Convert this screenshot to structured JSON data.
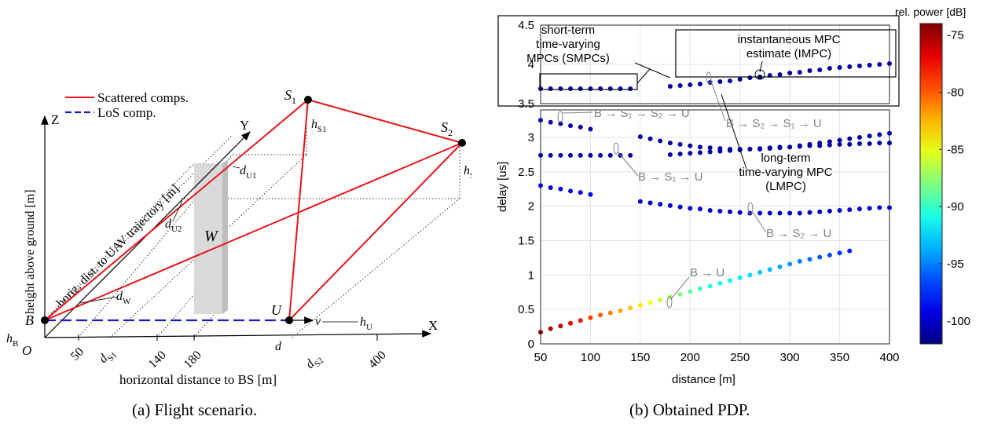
{
  "captions": {
    "a": "(a) Flight scenario.",
    "b": "(b) Obtained PDP."
  },
  "scenario": {
    "legend": {
      "scattered": "Scattered comps.",
      "los": "LoS comp."
    },
    "colors": {
      "scattered": "#e8151b",
      "los": "#1818c8"
    },
    "axis_z": "Z",
    "axis_y": "Y",
    "axis_x": "X",
    "zlabel": "height above ground [m]",
    "ylabel": "horiz. dist. to UAV trajectory [m]",
    "xlabel": "horizontal distance to BS [m]",
    "x_ticks": [
      "50",
      "140",
      "180",
      "400"
    ],
    "labels": {
      "origin": "O",
      "B": "B",
      "U": "U",
      "W": "W",
      "v": "v",
      "d": "d",
      "S1": "S",
      "S1_sub": "1",
      "S2": "S",
      "S2_sub": "2",
      "hB": "h",
      "hB_sub": "B",
      "hU": "h",
      "hU_sub": "U",
      "hS1": "h",
      "hS1_sub": "S1",
      "hS2": "h",
      "hS2_sub": "S2",
      "dU1": "d",
      "dU1_sub": "U1",
      "dU2": "d",
      "dU2_sub": "U2",
      "dW": "d",
      "dW_sub": "W",
      "dS1": "d",
      "dS1_sub": "S1",
      "dS2": "d",
      "dS2_sub": "S2"
    }
  },
  "pdp": {
    "colorbar": {
      "title": "rel. power [dB]",
      "ticks": [
        "-75",
        "-80",
        "-85",
        "-90",
        "-95",
        "-100"
      ],
      "tick_values": [
        -75,
        -80,
        -85,
        -90,
        -95,
        -100
      ],
      "range": [
        -102,
        -74
      ]
    },
    "annotations": {
      "smpc": [
        "short-term",
        "time-varying",
        "MPCs (SMPCs)"
      ],
      "impc": [
        "instantaneous MPC",
        "estimate (IMPC)"
      ],
      "lmpc": [
        "long-term",
        "time-varying MPC",
        "(LMPC)"
      ],
      "p_bs1s2u": "B → S₁ → S₂ → U",
      "p_bs2s1u": "B → S₂ → S₁ → U",
      "p_bs1u": "B → S₁ → U",
      "p_bs2u": "B → S₂ → U",
      "p_bu": "B → U"
    }
  },
  "chart_data": {
    "type": "scatter",
    "xlabel": "distance [m]",
    "ylabel": "delay [us]",
    "xlim": [
      50,
      400
    ],
    "ylim": [
      0,
      3.4
    ],
    "inset_ylim": [
      3.5,
      4.5
    ],
    "x_ticks": [
      50,
      100,
      150,
      200,
      250,
      300,
      350,
      400
    ],
    "y_ticks": [
      0,
      0.5,
      1,
      1.5,
      2,
      2.5,
      3
    ],
    "inset_y_ticks": [
      3.5,
      4,
      4.5
    ],
    "grid": true,
    "series": [
      {
        "name": "B → U",
        "points": [
          [
            50,
            0.17
          ],
          [
            60,
            0.22
          ],
          [
            70,
            0.26
          ],
          [
            80,
            0.3
          ],
          [
            90,
            0.34
          ],
          [
            100,
            0.38
          ],
          [
            110,
            0.42
          ],
          [
            120,
            0.45
          ],
          [
            130,
            0.48
          ],
          [
            140,
            0.52
          ],
          [
            150,
            0.56
          ],
          [
            160,
            0.6
          ],
          [
            170,
            0.64
          ],
          [
            180,
            0.68
          ],
          [
            190,
            0.72
          ],
          [
            200,
            0.76
          ],
          [
            210,
            0.8
          ],
          [
            220,
            0.84
          ],
          [
            230,
            0.88
          ],
          [
            240,
            0.92
          ],
          [
            250,
            0.96
          ],
          [
            260,
            1.0
          ],
          [
            270,
            1.04
          ],
          [
            280,
            1.08
          ],
          [
            290,
            1.12
          ],
          [
            300,
            1.16
          ],
          [
            310,
            1.2
          ],
          [
            320,
            1.23
          ],
          [
            330,
            1.26
          ],
          [
            340,
            1.29
          ],
          [
            350,
            1.32
          ],
          [
            360,
            1.35
          ]
        ],
        "power": [
          -74,
          -75,
          -76,
          -77,
          -78,
          -79,
          -80,
          -81,
          -82,
          -83,
          -84,
          -85,
          -86,
          -87,
          -88,
          -89,
          -90,
          -90.5,
          -91,
          -91.5,
          -92,
          -92.5,
          -93,
          -93.5,
          -94,
          -94.5,
          -95,
          -95.5,
          -96,
          -96.5,
          -97,
          -97.5
        ]
      },
      {
        "name": "B → S₂ → U (first)",
        "points": [
          [
            50,
            2.3
          ],
          [
            60,
            2.27
          ],
          [
            70,
            2.25
          ],
          [
            80,
            2.22
          ],
          [
            90,
            2.2
          ],
          [
            100,
            2.17
          ]
        ],
        "power": [
          -99,
          -99,
          -99,
          -99,
          -99,
          -99
        ]
      },
      {
        "name": "B → S₂ → U",
        "points": [
          [
            150,
            2.07
          ],
          [
            160,
            2.05
          ],
          [
            170,
            2.03
          ],
          [
            180,
            2.01
          ],
          [
            190,
            1.99
          ],
          [
            200,
            1.97
          ],
          [
            210,
            1.96
          ],
          [
            220,
            1.94
          ],
          [
            230,
            1.93
          ],
          [
            240,
            1.92
          ],
          [
            250,
            1.91
          ],
          [
            260,
            1.9
          ],
          [
            270,
            1.9
          ],
          [
            280,
            1.9
          ],
          [
            290,
            1.9
          ],
          [
            300,
            1.9
          ],
          [
            310,
            1.9
          ],
          [
            320,
            1.91
          ],
          [
            330,
            1.92
          ],
          [
            340,
            1.93
          ],
          [
            350,
            1.94
          ],
          [
            360,
            1.95
          ],
          [
            370,
            1.96
          ],
          [
            380,
            1.97
          ],
          [
            390,
            1.98
          ],
          [
            400,
            1.98
          ]
        ],
        "power": [
          -100,
          -100,
          -100,
          -100,
          -100,
          -100,
          -100,
          -100,
          -100,
          -100,
          -100,
          -100,
          -100,
          -100,
          -100,
          -100,
          -100,
          -100,
          -100,
          -100,
          -100,
          -100,
          -100,
          -100,
          -100,
          -100
        ]
      },
      {
        "name": "B → S₁ → U",
        "points": [
          [
            50,
            2.74
          ],
          [
            60,
            2.74
          ],
          [
            70,
            2.74
          ],
          [
            80,
            2.74
          ],
          [
            90,
            2.74
          ],
          [
            100,
            2.74
          ],
          [
            110,
            2.74
          ],
          [
            120,
            2.74
          ],
          [
            130,
            2.74
          ],
          [
            140,
            2.74
          ]
        ],
        "power": [
          -101,
          -101,
          -101,
          -101,
          -101,
          -101,
          -101,
          -101,
          -101,
          -101
        ]
      },
      {
        "name": "B → S₁ → S₂ → U",
        "points": [
          [
            50,
            3.25
          ],
          [
            60,
            3.22
          ],
          [
            70,
            3.2
          ],
          [
            80,
            3.17
          ],
          [
            90,
            3.15
          ],
          [
            100,
            3.12
          ]
        ],
        "power": [
          -101,
          -101,
          -101,
          -101,
          -101,
          -101
        ]
      },
      {
        "name": "B → S₂ → S₁ → U",
        "points": [
          [
            150,
            3.01
          ],
          [
            160,
            2.98
          ],
          [
            170,
            2.95
          ],
          [
            180,
            2.92
          ],
          [
            190,
            2.9
          ],
          [
            200,
            2.88
          ],
          [
            210,
            2.86
          ],
          [
            220,
            2.85
          ],
          [
            230,
            2.84
          ],
          [
            240,
            2.83
          ],
          [
            250,
            2.83
          ],
          [
            260,
            2.83
          ],
          [
            270,
            2.83
          ],
          [
            280,
            2.84
          ],
          [
            290,
            2.85
          ],
          [
            300,
            2.86
          ],
          [
            310,
            2.88
          ],
          [
            320,
            2.9
          ],
          [
            330,
            2.92
          ],
          [
            340,
            2.94
          ],
          [
            350,
            2.96
          ],
          [
            360,
            2.98
          ],
          [
            370,
            3.0
          ],
          [
            380,
            3.02
          ],
          [
            390,
            3.04
          ],
          [
            400,
            3.06
          ]
        ],
        "power": [
          -101,
          -101,
          -101,
          -101,
          -101,
          -101,
          -101,
          -101,
          -101,
          -101,
          -101,
          -101,
          -101,
          -101,
          -101,
          -101,
          -101,
          -101,
          -101,
          -101,
          -101,
          -101,
          -101,
          -101,
          -101,
          -101
        ]
      },
      {
        "name": "LMPC lower",
        "points": [
          [
            180,
            2.75
          ],
          [
            190,
            2.76
          ],
          [
            200,
            2.77
          ],
          [
            210,
            2.78
          ],
          [
            220,
            2.79
          ],
          [
            230,
            2.8
          ],
          [
            240,
            2.81
          ],
          [
            250,
            2.82
          ],
          [
            260,
            2.83
          ],
          [
            270,
            2.84
          ],
          [
            280,
            2.85
          ],
          [
            290,
            2.86
          ],
          [
            300,
            2.86
          ],
          [
            310,
            2.87
          ],
          [
            320,
            2.88
          ],
          [
            330,
            2.88
          ],
          [
            340,
            2.89
          ],
          [
            350,
            2.9
          ],
          [
            360,
            2.9
          ],
          [
            370,
            2.91
          ],
          [
            380,
            2.91
          ],
          [
            390,
            2.92
          ],
          [
            400,
            2.92
          ]
        ],
        "power": [
          -101,
          -101,
          -101,
          -101,
          -101,
          -101,
          -101,
          -101,
          -101,
          -101,
          -101,
          -101,
          -101,
          -101,
          -101,
          -101,
          -101,
          -101,
          -101,
          -101,
          -101,
          -101,
          -101
        ]
      },
      {
        "name": "SMPC",
        "inset": true,
        "points": [
          [
            50,
            3.69
          ],
          [
            60,
            3.69
          ],
          [
            70,
            3.69
          ],
          [
            80,
            3.69
          ],
          [
            90,
            3.69
          ],
          [
            100,
            3.69
          ],
          [
            110,
            3.69
          ],
          [
            120,
            3.69
          ],
          [
            130,
            3.69
          ],
          [
            140,
            3.69
          ]
        ],
        "power": [
          -101,
          -101,
          -101,
          -101,
          -101,
          -101,
          -101,
          -101,
          -101,
          -101
        ]
      },
      {
        "name": "LMPC inset",
        "inset": true,
        "points": [
          [
            180,
            3.72
          ],
          [
            190,
            3.73
          ],
          [
            200,
            3.74
          ],
          [
            210,
            3.75
          ],
          [
            220,
            3.77
          ],
          [
            230,
            3.78
          ],
          [
            240,
            3.79
          ],
          [
            250,
            3.81
          ],
          [
            260,
            3.83
          ],
          [
            270,
            3.84
          ],
          [
            280,
            3.86
          ],
          [
            290,
            3.87
          ],
          [
            300,
            3.89
          ],
          [
            310,
            3.9
          ],
          [
            320,
            3.92
          ],
          [
            330,
            3.93
          ],
          [
            340,
            3.95
          ],
          [
            350,
            3.96
          ],
          [
            360,
            3.97
          ],
          [
            370,
            3.98
          ],
          [
            380,
            3.99
          ],
          [
            390,
            4.0
          ],
          [
            400,
            4.01
          ]
        ],
        "power": [
          -101,
          -101,
          -101,
          -101,
          -101,
          -101,
          -101,
          -101,
          -101,
          -101,
          -101,
          -101,
          -101,
          -101,
          -101,
          -101,
          -101,
          -101,
          -101,
          -101,
          -101,
          -101,
          -101
        ]
      }
    ]
  }
}
